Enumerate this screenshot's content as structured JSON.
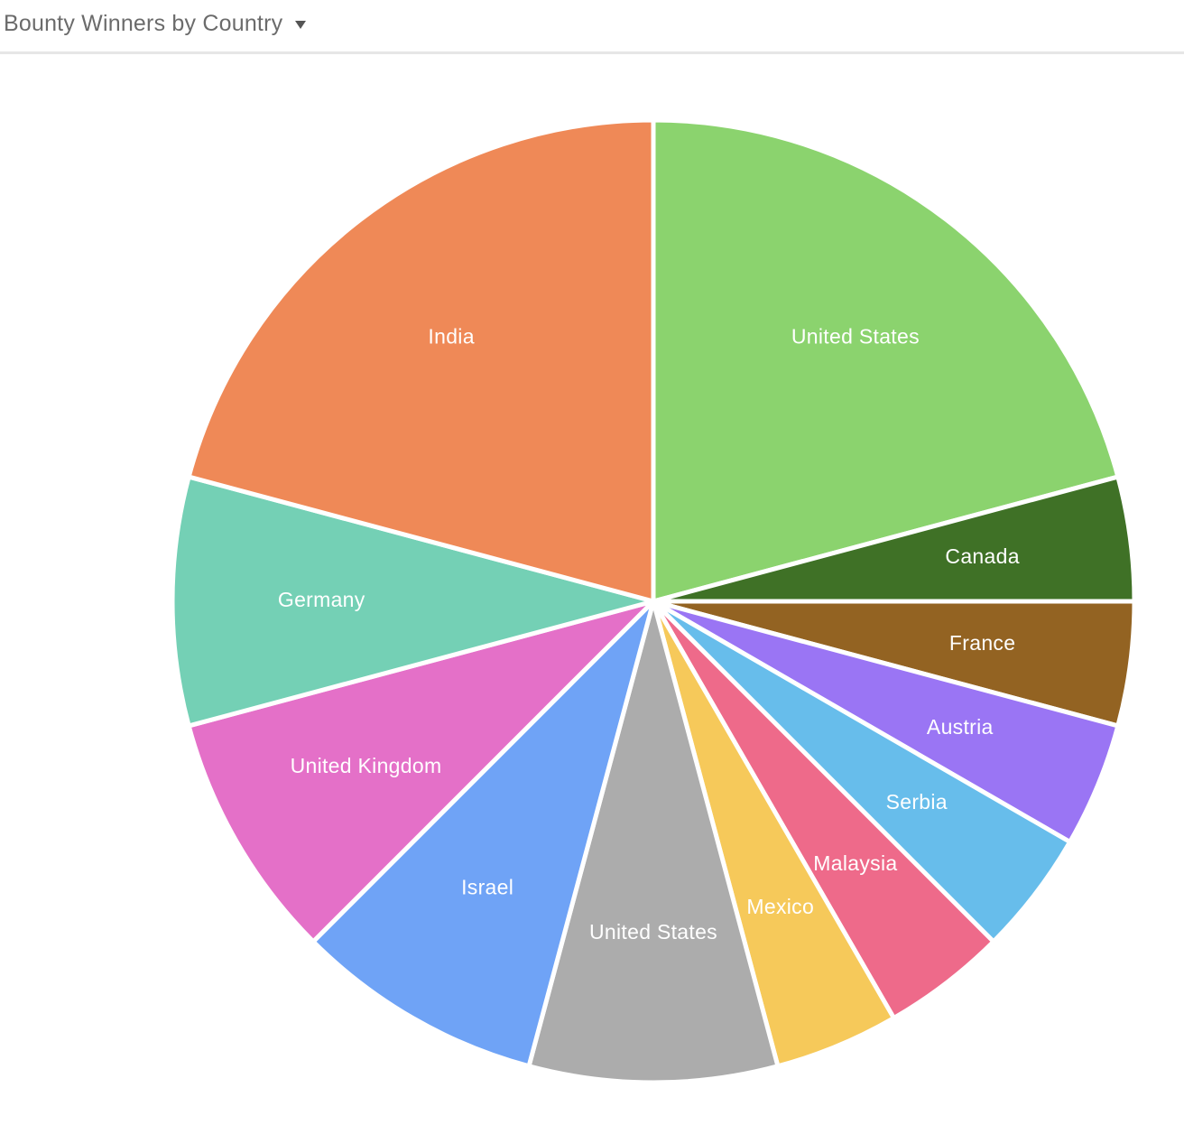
{
  "header": {
    "title": "Bounty Winners by Country",
    "dropdown_icon": "caret-down-icon"
  },
  "chart_data": {
    "type": "pie",
    "title": "Bounty Winners by Country",
    "start_angle": "12 o'clock",
    "direction": "clockwise",
    "slices": [
      {
        "label": "United States",
        "value": 20,
        "color": "#8bd36e"
      },
      {
        "label": "Canada",
        "value": 4,
        "color": "#3f7126"
      },
      {
        "label": "France",
        "value": 4,
        "color": "#936322"
      },
      {
        "label": "Austria",
        "value": 4,
        "color": "#9a75f4"
      },
      {
        "label": "Serbia",
        "value": 4,
        "color": "#67bdeb"
      },
      {
        "label": "Malaysia",
        "value": 4,
        "color": "#ee6a8a"
      },
      {
        "label": "Mexico",
        "value": 4,
        "color": "#f6c95a"
      },
      {
        "label": "United States",
        "value": 8,
        "color": "#acacac"
      },
      {
        "label": "Israel",
        "value": 8,
        "color": "#6fa3f6"
      },
      {
        "label": "United Kingdom",
        "value": 8,
        "color": "#e470c8"
      },
      {
        "label": "Germany",
        "value": 8,
        "color": "#74d0b5"
      },
      {
        "label": "India",
        "value": 20,
        "color": "#ef8957"
      }
    ]
  }
}
